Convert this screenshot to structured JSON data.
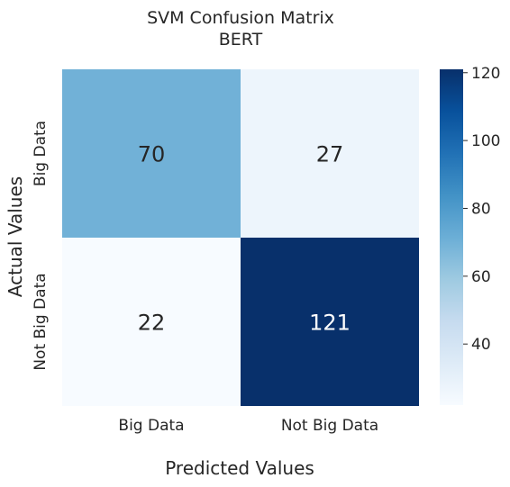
{
  "chart_data": {
    "type": "heatmap",
    "title_lines": [
      "SVM Confusion Matrix",
      "BERT"
    ],
    "xlabel": "Predicted Values",
    "ylabel": "Actual Values",
    "x_categories": [
      "Big Data",
      "Not Big Data"
    ],
    "y_categories": [
      "Big Data",
      "Not Big Data"
    ],
    "values": [
      [
        70,
        27
      ],
      [
        22,
        121
      ]
    ],
    "colormap": "Blues",
    "vmin": 22,
    "vmax": 121,
    "colorbar_ticks": [
      40,
      60,
      80,
      100,
      120
    ],
    "colorbar_tick_labels": [
      "40",
      "60",
      "80",
      "100",
      "120"
    ]
  }
}
